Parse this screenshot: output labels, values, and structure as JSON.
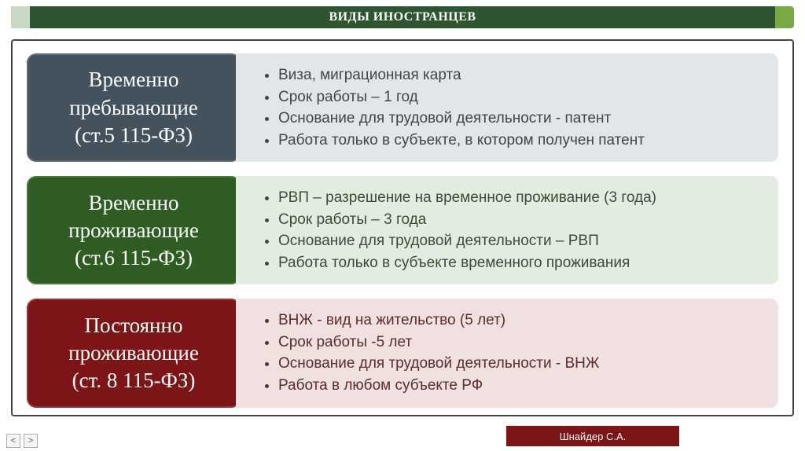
{
  "slide": {
    "title": "ВИДЫ ИНОСТРАНЦЕВ",
    "title_bg": "#2f5431",
    "title_accent_right": "#7aa843",
    "footer_author": "Шнайдер С.А.",
    "footer_bg": "#7c1418"
  },
  "rows": [
    {
      "badge_line1": "Временно",
      "badge_line2": "пребывающие",
      "badge_line3": "(ст.5 115-ФЗ)",
      "badge_bg": "#43525d",
      "panel_bg": "#e3e6e8",
      "text_color": "#3d464d",
      "bullets": [
        "Виза, миграционная карта",
        "Срок работы – 1 год",
        "Основание для трудовой деятельности  - патент",
        "Работа только в субъекте, в котором получен патент"
      ]
    },
    {
      "badge_line1": "Временно",
      "badge_line2": "проживающие",
      "badge_line3": "(ст.6 115-ФЗ)",
      "badge_bg": "#2f5c23",
      "panel_bg": "#e3ece0",
      "text_color": "#3a4d34",
      "bullets": [
        "РВП – разрешение на временное проживание (3 года)",
        "Срок работы – 3 года",
        "Основание для трудовой деятельности – РВП",
        "Работа только в субъекте временного проживания"
      ]
    },
    {
      "badge_line1": "Постоянно",
      "badge_line2": "проживающие",
      "badge_line3": "(ст. 8 115-ФЗ)",
      "badge_bg": "#7c1418",
      "panel_bg": "#f0e0e0",
      "text_color": "#5a2d2d",
      "bullets": [
        "ВНЖ - вид на жительство (5 лет)",
        "Срок работы -5 лет",
        "Основание для трудовой деятельности  - ВНЖ",
        "Работа в любом субъекте РФ"
      ]
    }
  ],
  "nav": {
    "prev": "<",
    "next": ">"
  }
}
